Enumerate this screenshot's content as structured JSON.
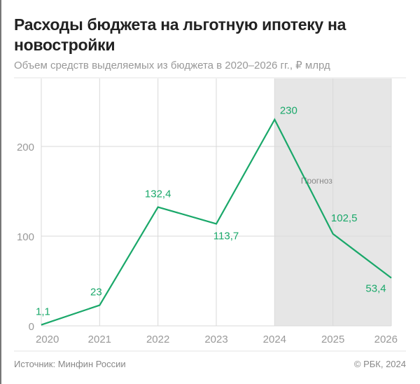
{
  "header": {
    "title": "Расходы бюджета на льготную ипотеку на новостройки",
    "subtitle": "Объем средств выделяемых из бюджета в 2020–2026 гг., ₽ млрд"
  },
  "footer": {
    "source": "Источник: Минфин России",
    "copyright": "© РБК, 2024"
  },
  "chart_data": {
    "type": "line",
    "title": "Расходы бюджета на льготную ипотеку на новостройки",
    "subtitle": "Объем средств выделяемых из бюджета в 2020–2026 гг., ₽ млрд",
    "categories": [
      "2020",
      "2021",
      "2022",
      "2023",
      "2024",
      "2025",
      "2026"
    ],
    "values": [
      1.1,
      23,
      132.4,
      113.7,
      230,
      102.5,
      53.4
    ],
    "data_labels": [
      "1,1",
      "23",
      "132,4",
      "113,7",
      "230",
      "102,5",
      "53,4"
    ],
    "yticks": [
      0,
      100,
      200
    ],
    "ytick_labels": [
      "0",
      "100",
      "200"
    ],
    "ylim": [
      0,
      278
    ],
    "grid": true,
    "forecast_region": {
      "from": "2024",
      "to": "2026",
      "label": "Прогноз"
    },
    "colors": {
      "line": "#1aa86a",
      "forecast_bg": "#e6e6e6",
      "grid": "#d9d9d9"
    }
  }
}
